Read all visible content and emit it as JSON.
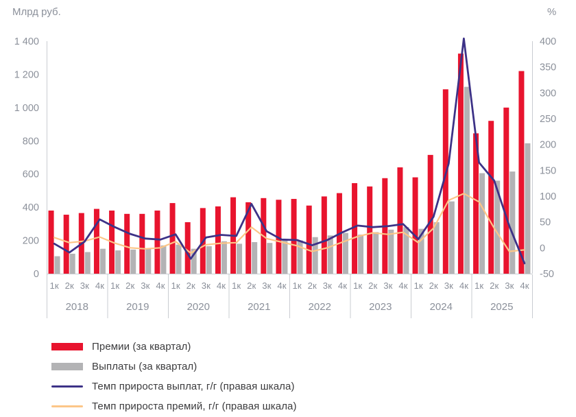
{
  "chart_data": {
    "type": "combo-bar-line",
    "left_axis": {
      "title": "Млрд руб.",
      "min": 0,
      "max": 1400,
      "step": 200,
      "tick_labels": [
        "0",
        "200",
        "400",
        "600",
        "800",
        "1 000",
        "1 200",
        "1 400"
      ]
    },
    "right_axis": {
      "title": "%",
      "min": -50,
      "max": 400,
      "step": 50,
      "tick_labels": [
        "-50",
        "0",
        "50",
        "100",
        "150",
        "200",
        "250",
        "300",
        "350",
        "400"
      ]
    },
    "x_axis": {
      "quarter_labels": [
        "1к",
        "2к",
        "3к",
        "4к"
      ],
      "years": [
        "2018",
        "2019",
        "2020",
        "2021",
        "2022",
        "2023",
        "2024",
        "2025"
      ]
    },
    "grid": "off",
    "legend_position": "bottom-left",
    "series": [
      {
        "name": "Премии (за квартал)",
        "type": "bar",
        "axis": "left",
        "color": "#e8142e",
        "values": [
          380,
          355,
          365,
          390,
          380,
          360,
          360,
          380,
          425,
          310,
          395,
          405,
          460,
          430,
          455,
          445,
          450,
          410,
          465,
          485,
          545,
          525,
          575,
          640,
          580,
          715,
          1110,
          1325,
          845,
          920,
          1000,
          1220
        ]
      },
      {
        "name": "Выплаты (за квартал)",
        "type": "bar",
        "axis": "left",
        "color": "#b3b3b5",
        "values": [
          105,
          120,
          130,
          150,
          140,
          145,
          150,
          170,
          175,
          150,
          165,
          195,
          180,
          190,
          185,
          200,
          200,
          220,
          230,
          245,
          235,
          250,
          265,
          280,
          270,
          310,
          435,
          1125,
          605,
          560,
          615,
          785
        ]
      },
      {
        "name": "Темп прироста выплат, г/г (правая шкала)",
        "type": "line",
        "axis": "right",
        "color": "#3d3287",
        "values": [
          8,
          -9,
          12,
          55,
          40,
          27,
          18,
          16,
          26,
          -21,
          20,
          25,
          23,
          85,
          32,
          16,
          15,
          5,
          15,
          30,
          43,
          40,
          42,
          46,
          17,
          60,
          163,
          405,
          165,
          130,
          42,
          -30
        ]
      },
      {
        "name": "Темп прироста премий, г/г (правая шкала)",
        "type": "line",
        "axis": "right",
        "color": "#fcc688",
        "values": [
          20,
          10,
          13,
          21,
          9,
          0,
          -2,
          0,
          12,
          -10,
          6,
          9,
          10,
          40,
          18,
          11,
          4,
          -7,
          0,
          11,
          22,
          29,
          26,
          30,
          10,
          38,
          92,
          105,
          89,
          38,
          -7,
          -4
        ]
      }
    ]
  }
}
